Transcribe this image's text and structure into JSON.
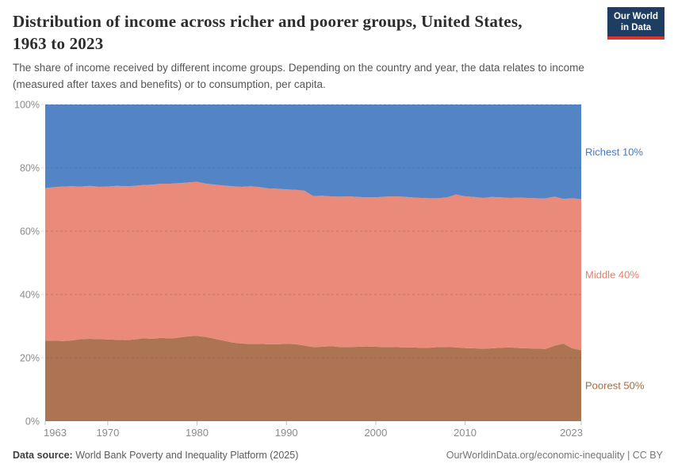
{
  "header": {
    "title_line1": "Distribution of income across richer and poorer groups, United States,",
    "title_line2": "1963 to 2023",
    "subtitle_line1": "The share of income received by different income groups. Depending on the country and year, the data relates to income",
    "subtitle_line2": "(measured after taxes and benefits) or to consumption, per capita.",
    "logo_line1": "Our World",
    "logo_line2": "in Data"
  },
  "footer": {
    "source_label": "Data source:",
    "source_value": "World Bank Poverty and Inequality Platform (2025)",
    "attribution": "OurWorldinData.org/economic-inequality | CC BY"
  },
  "colors": {
    "logo_navy": "#1d3d63",
    "logo_red": "#d8352e",
    "axis_text": "#8b8b8b",
    "tick_mark": "#c2c2c2",
    "gridline": "rgba(50,50,50,0.2)"
  },
  "chart_data": {
    "type": "area",
    "stacked": true,
    "title": "Distribution of income across richer and poorer groups, United States, 1963 to 2023",
    "xlabel": "",
    "ylabel": "",
    "x_range": [
      1963,
      2023
    ],
    "ylim": [
      0,
      100
    ],
    "grid": true,
    "legend_position": "right",
    "years": [
      1963,
      1964,
      1965,
      1966,
      1967,
      1968,
      1969,
      1970,
      1971,
      1972,
      1973,
      1974,
      1975,
      1976,
      1977,
      1978,
      1979,
      1980,
      1981,
      1982,
      1983,
      1984,
      1985,
      1986,
      1987,
      1988,
      1989,
      1990,
      1991,
      1992,
      1993,
      1994,
      1995,
      1996,
      1997,
      1998,
      1999,
      2000,
      2001,
      2002,
      2003,
      2004,
      2005,
      2006,
      2007,
      2008,
      2009,
      2010,
      2011,
      2012,
      2013,
      2014,
      2015,
      2016,
      2017,
      2018,
      2019,
      2020,
      2021,
      2022,
      2023
    ],
    "series": [
      {
        "id": "poorest-50",
        "name": "Poorest 50%",
        "color": "#AD7454",
        "label_color": "#A96B3F",
        "values": [
          25.4,
          25.4,
          25.3,
          25.5,
          25.9,
          26.0,
          25.9,
          25.8,
          25.7,
          25.6,
          25.8,
          26.2,
          26.0,
          26.3,
          26.1,
          26.4,
          26.8,
          26.9,
          26.6,
          26.0,
          25.4,
          24.8,
          24.5,
          24.4,
          24.4,
          24.3,
          24.3,
          24.4,
          24.3,
          23.9,
          23.4,
          23.5,
          23.7,
          23.4,
          23.4,
          23.5,
          23.6,
          23.5,
          23.4,
          23.4,
          23.3,
          23.3,
          23.2,
          23.2,
          23.4,
          23.4,
          23.3,
          23.1,
          23.0,
          22.9,
          23.0,
          23.2,
          23.3,
          23.1,
          23.0,
          22.9,
          22.8,
          23.8,
          24.5,
          23.0,
          22.4
        ]
      },
      {
        "id": "middle-40",
        "name": "Middle 40%",
        "color": "#E98A7A",
        "label_color": "#E4806E",
        "values": [
          48.2,
          48.5,
          48.8,
          48.7,
          48.2,
          48.3,
          48.1,
          48.3,
          48.6,
          48.6,
          48.5,
          48.4,
          48.7,
          48.7,
          48.9,
          48.8,
          48.6,
          48.7,
          48.4,
          48.7,
          49.0,
          49.4,
          49.5,
          49.8,
          49.5,
          49.2,
          49.1,
          48.8,
          48.8,
          48.9,
          47.7,
          47.7,
          47.3,
          47.5,
          47.6,
          47.3,
          47.1,
          47.2,
          47.5,
          47.6,
          47.6,
          47.4,
          47.3,
          47.2,
          47.0,
          47.3,
          48.3,
          47.9,
          47.8,
          47.6,
          47.8,
          47.5,
          47.2,
          47.5,
          47.5,
          47.5,
          47.5,
          47.1,
          45.7,
          47.4,
          47.7
        ]
      },
      {
        "id": "richest-10",
        "name": "Richest 10%",
        "color": "#5385C6",
        "label_color": "#4877C2",
        "values": [
          26.4,
          26.1,
          25.9,
          25.8,
          25.9,
          25.7,
          26.0,
          25.9,
          25.7,
          25.8,
          25.7,
          25.4,
          25.3,
          25.0,
          25.0,
          24.8,
          24.6,
          24.4,
          25.0,
          25.3,
          25.6,
          25.8,
          26.0,
          25.8,
          26.1,
          26.5,
          26.6,
          26.8,
          26.9,
          27.2,
          28.9,
          28.8,
          29.0,
          29.1,
          29.0,
          29.2,
          29.3,
          29.3,
          29.1,
          29.0,
          29.1,
          29.3,
          29.5,
          29.6,
          29.6,
          29.3,
          28.4,
          29.0,
          29.2,
          29.5,
          29.2,
          29.3,
          29.5,
          29.4,
          29.5,
          29.6,
          29.7,
          29.1,
          29.8,
          29.6,
          29.9
        ]
      }
    ],
    "x_ticks": [
      {
        "value": 1963,
        "label": "1963"
      },
      {
        "value": 1970,
        "label": "1970"
      },
      {
        "value": 1980,
        "label": "1980"
      },
      {
        "value": 1990,
        "label": "1990"
      },
      {
        "value": 2000,
        "label": "2000"
      },
      {
        "value": 2010,
        "label": "2010"
      },
      {
        "value": 2023,
        "label": "2023"
      }
    ],
    "y_ticks": [
      {
        "value": 0,
        "label": "0%"
      },
      {
        "value": 20,
        "label": "20%"
      },
      {
        "value": 40,
        "label": "40%"
      },
      {
        "value": 60,
        "label": "60%"
      },
      {
        "value": 80,
        "label": "80%"
      },
      {
        "value": 100,
        "label": "100%"
      }
    ]
  }
}
